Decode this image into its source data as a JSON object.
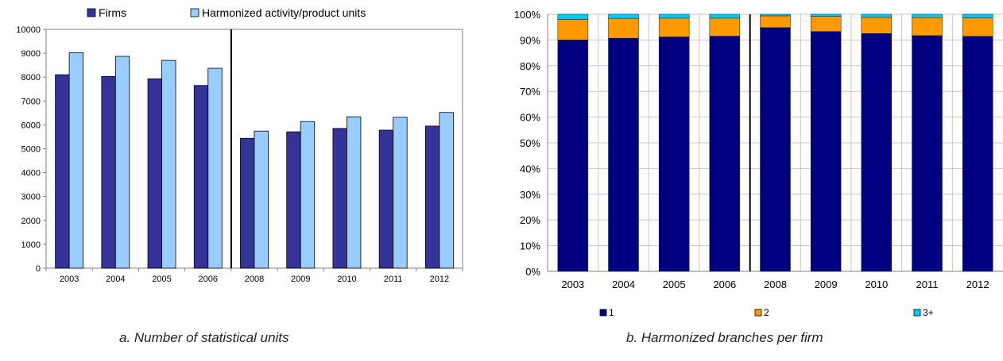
{
  "captions": {
    "left": "a. Number of statistical units",
    "right": "b. Harmonized branches per firm"
  },
  "chart_data": [
    {
      "type": "bar",
      "categories": [
        "2003",
        "2004",
        "2005",
        "2006",
        "2008",
        "2009",
        "2010",
        "2011",
        "2012"
      ],
      "series": [
        {
          "name": "Firms",
          "color": "#333399",
          "values": [
            8100,
            8030,
            7930,
            7650,
            5440,
            5710,
            5850,
            5780,
            5950
          ]
        },
        {
          "name": "Harmonized activity/product units",
          "color": "#99ccff",
          "values": [
            9020,
            8870,
            8700,
            8370,
            5740,
            6140,
            6340,
            6320,
            6520
          ]
        }
      ],
      "ylim": [
        0,
        10000
      ],
      "yticks": [
        "0",
        "1000",
        "2000",
        "3000",
        "4000",
        "5000",
        "6000",
        "7000",
        "8000",
        "9000",
        "10000"
      ],
      "grid": false,
      "legend": "top",
      "separator_between": [
        "2006",
        "2008"
      ]
    },
    {
      "type": "bar",
      "stacked": true,
      "categories": [
        "2003",
        "2004",
        "2005",
        "2006",
        "2008",
        "2009",
        "2010",
        "2011",
        "2012"
      ],
      "series": [
        {
          "name": "1",
          "color": "#000080",
          "values": [
            90.0,
            90.7,
            91.2,
            91.5,
            94.8,
            93.3,
            92.5,
            91.7,
            91.4
          ]
        },
        {
          "name": "2",
          "color": "#ff9900",
          "values": [
            8.0,
            7.7,
            7.3,
            7.0,
            4.6,
            5.9,
            6.3,
            7.0,
            7.2
          ]
        },
        {
          "name": "3+",
          "color": "#00ccff",
          "values": [
            2.0,
            1.6,
            1.5,
            1.5,
            0.6,
            0.8,
            1.2,
            1.3,
            1.4
          ]
        }
      ],
      "ylim": [
        0,
        100
      ],
      "yticks": [
        "0%",
        "10%",
        "20%",
        "30%",
        "40%",
        "50%",
        "60%",
        "70%",
        "80%",
        "90%",
        "100%"
      ],
      "grid": true,
      "legend": "bottom",
      "separator_between": [
        "2006",
        "2008"
      ]
    }
  ]
}
